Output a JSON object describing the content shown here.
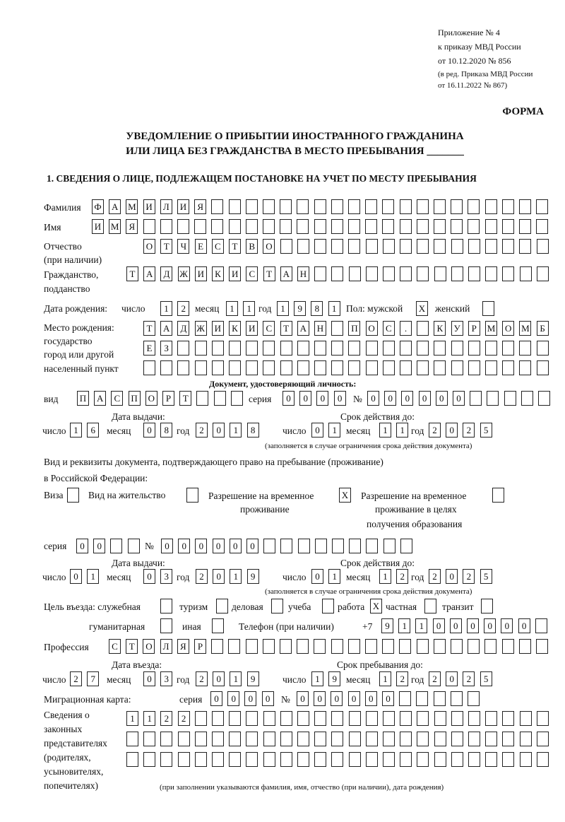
{
  "header": {
    "appendix": [
      "Приложение № 4",
      "к приказу МВД России",
      "от 10.12.2020 № 856"
    ],
    "amendment": [
      "(в ред. Приказа МВД России",
      "от 16.11.2022 № 867)"
    ],
    "form_label": "ФОРМА",
    "title_line1": "УВЕДОМЛЕНИЕ О ПРИБЫТИИ ИНОСТРАННОГО ГРАЖДАНИНА",
    "title_line2": "ИЛИ ЛИЦА БЕЗ ГРАЖДАНСТВА В МЕСТО ПРЕБЫВАНИЯ _______",
    "section1": "1. СВЕДЕНИЯ О ЛИЦЕ, ПОДЛЕЖАЩЕМ ПОСТАНОВКЕ НА УЧЕТ ПО МЕСТУ ПРЕБЫВАНИЯ"
  },
  "common": {
    "day": "число",
    "month": "месяц",
    "year": "год",
    "series": "серия",
    "number": "№",
    "validity_note": "(заполняется в случае ограничения срока действия документа)"
  },
  "person": {
    "surname": {
      "label": "Фамилия",
      "value": [
        "Ф",
        "А",
        "М",
        "И",
        "Л",
        "И",
        "Я"
      ]
    },
    "name": {
      "label": "Имя",
      "value": [
        "И",
        "М",
        "Я"
      ]
    },
    "patronymic": {
      "label1": "Отчество",
      "label2": "(при наличии)",
      "value": [
        "О",
        "Т",
        "Ч",
        "Е",
        "С",
        "Т",
        "В",
        "О"
      ]
    },
    "citizenship": {
      "label1": "Гражданство,",
      "label2": "подданство",
      "value": [
        "Т",
        "А",
        "Д",
        "Ж",
        "И",
        "К",
        "И",
        "С",
        "Т",
        "А",
        "Н"
      ]
    },
    "birth_date": {
      "label": "Дата рождения:",
      "day": [
        "1",
        "2"
      ],
      "month": [
        "1",
        "1"
      ],
      "year": [
        "1",
        "9",
        "8",
        "1"
      ]
    },
    "sex": {
      "label": "Пол: мужской",
      "male": "X",
      "female_label": "женский",
      "female": ""
    },
    "birth_place": {
      "labels": [
        "Место рождения:",
        "государство",
        "город или другой",
        "населенный пункт"
      ],
      "row1": [
        "Т",
        "А",
        "Д",
        "Ж",
        "И",
        "К",
        "И",
        "С",
        "Т",
        "А",
        "Н",
        "",
        "П",
        "О",
        "С",
        ".",
        "",
        "К",
        "У",
        "Р",
        "М",
        "О",
        "М",
        "Б"
      ],
      "row2": [
        "Е",
        "З"
      ],
      "row3": []
    }
  },
  "identity_doc": {
    "heading": "Документ, удостоверяющий личность:",
    "kind_label": "вид",
    "kind": [
      "П",
      "А",
      "С",
      "П",
      "О",
      "Р",
      "Т"
    ],
    "series": [
      "0",
      "0",
      "0",
      "0"
    ],
    "number": [
      "0",
      "0",
      "0",
      "0",
      "0",
      "0"
    ],
    "issue_label": "Дата выдачи:",
    "issue": {
      "day": [
        "1",
        "6"
      ],
      "month": [
        "0",
        "8"
      ],
      "year": [
        "2",
        "0",
        "1",
        "8"
      ]
    },
    "valid_label": "Срок действия до:",
    "valid": {
      "day": [
        "0",
        "1"
      ],
      "month": [
        "1",
        "1"
      ],
      "year": [
        "2",
        "0",
        "2",
        "5"
      ]
    }
  },
  "residence_doc": {
    "intro1": "Вид и реквизиты документа, подтверждающего право на пребывание (проживание)",
    "intro2": "в Российской Федерации:",
    "visa": {
      "label": "Виза",
      "value": ""
    },
    "residence_permit": {
      "label": "Вид на жительство",
      "value": ""
    },
    "temp_permit": {
      "label1": "Разрешение на временное",
      "label2": "проживание",
      "value": "X"
    },
    "temp_permit_edu": {
      "label1": "Разрешение на временное",
      "label2": "проживание в целях",
      "label3": "получения образования",
      "value": ""
    },
    "series": [
      "0",
      "0"
    ],
    "number": [
      "0",
      "0",
      "0",
      "0",
      "0",
      "0"
    ],
    "issue_label": "Дата выдачи:",
    "issue": {
      "day": [
        "0",
        "1"
      ],
      "month": [
        "0",
        "3"
      ],
      "year": [
        "2",
        "0",
        "1",
        "9"
      ]
    },
    "valid_label": "Срок действия до:",
    "valid": {
      "day": [
        "0",
        "1"
      ],
      "month": [
        "1",
        "2"
      ],
      "year": [
        "2",
        "0",
        "2",
        "5"
      ]
    }
  },
  "purpose": {
    "label": "Цель въезда: служебная",
    "official": "",
    "tourism_label": "туризм",
    "tourism": "",
    "business_label": "деловая",
    "business": "",
    "study_label": "учеба",
    "study": "",
    "work_label": "работа",
    "work": "X",
    "private_label": "частная",
    "private": "",
    "transit_label": "транзит",
    "transit": "",
    "humanitarian_label": "гуманитарная",
    "humanitarian": "",
    "other_label": "иная",
    "other": ""
  },
  "phone": {
    "label": "Телефон (при наличии)",
    "prefix": "+7",
    "value": [
      "9",
      "1",
      "1",
      "0",
      "0",
      "0",
      "0",
      "0",
      "0"
    ]
  },
  "profession": {
    "label": "Профессия",
    "value": [
      "С",
      "Т",
      "О",
      "Л",
      "Я",
      "Р"
    ]
  },
  "entry": {
    "label": "Дата въезда:",
    "date": {
      "day": [
        "2",
        "7"
      ],
      "month": [
        "0",
        "3"
      ],
      "year": [
        "2",
        "0",
        "1",
        "9"
      ]
    },
    "stay_label": "Срок пребывания до:",
    "stay": {
      "day": [
        "1",
        "9"
      ],
      "month": [
        "1",
        "2"
      ],
      "year": [
        "2",
        "0",
        "2",
        "5"
      ]
    }
  },
  "migration_card": {
    "label": "Миграционная карта:",
    "series": [
      "0",
      "0",
      "0",
      "0"
    ],
    "number": [
      "0",
      "0",
      "0",
      "0",
      "0",
      "0"
    ]
  },
  "representatives": {
    "labels": [
      "Сведения о",
      "законных",
      "представителях",
      "(родителях,",
      "усыновителях,",
      "попечителях)"
    ],
    "row1": [
      "1",
      "1",
      "2",
      "2"
    ],
    "row2": [],
    "row3": [],
    "note": "(при заполнении указываются фамилия, имя, отчество (при наличии), дата рождения)"
  }
}
